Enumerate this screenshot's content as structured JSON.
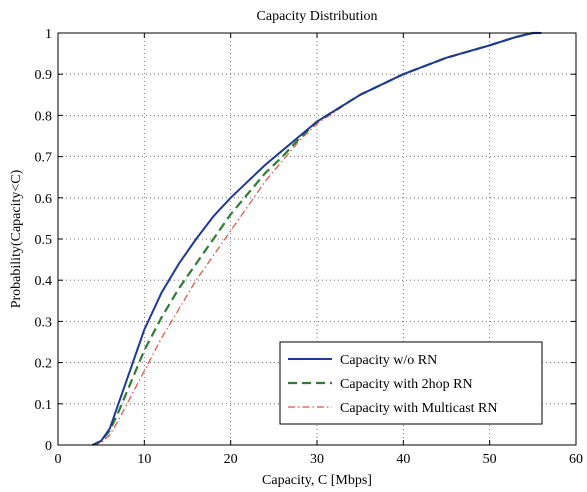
{
  "chart_data": {
    "type": "line",
    "title": "Capacity Distribution",
    "xlabel": "Capacity, C [Mbps]",
    "ylabel": "Probability(Capacity<C)",
    "xlim": [
      0,
      60
    ],
    "ylim": [
      0,
      1
    ],
    "xticks": [
      0,
      10,
      20,
      30,
      40,
      50,
      60
    ],
    "yticks": [
      0,
      0.1,
      0.2,
      0.3,
      0.4,
      0.5,
      0.6,
      0.7,
      0.8,
      0.9,
      1
    ],
    "grid": true,
    "legend_position": "bottom-right",
    "series": [
      {
        "name": "Capacity w/o RN",
        "color": "#1f3a93",
        "style": "solid",
        "x": [
          4,
          5,
          6,
          7,
          8,
          9,
          10,
          12,
          14,
          16,
          18,
          20,
          22,
          24,
          26,
          28,
          30,
          35,
          40,
          45,
          50,
          53,
          55,
          56
        ],
        "y": [
          0,
          0.01,
          0.04,
          0.1,
          0.16,
          0.22,
          0.28,
          0.37,
          0.44,
          0.5,
          0.555,
          0.6,
          0.64,
          0.68,
          0.715,
          0.75,
          0.785,
          0.85,
          0.9,
          0.94,
          0.97,
          0.99,
          1.0,
          1.0
        ]
      },
      {
        "name": "Capacity with 2hop RN",
        "color": "#2e7d32",
        "style": "dashed",
        "x": [
          4,
          5,
          6,
          7,
          8,
          9,
          10,
          12,
          14,
          16,
          18,
          20,
          22,
          24,
          26,
          28,
          30,
          35,
          40,
          45,
          50,
          53,
          55,
          56
        ],
        "y": [
          0,
          0.01,
          0.035,
          0.08,
          0.13,
          0.18,
          0.23,
          0.31,
          0.38,
          0.44,
          0.5,
          0.56,
          0.61,
          0.66,
          0.7,
          0.745,
          0.785,
          0.85,
          0.9,
          0.94,
          0.97,
          0.99,
          1.0,
          1.0
        ]
      },
      {
        "name": "Capacity with Multicast RN",
        "color": "#e0503f",
        "style": "dash-dot",
        "x": [
          4,
          5,
          6,
          7,
          8,
          9,
          10,
          12,
          14,
          16,
          18,
          20,
          22,
          24,
          26,
          28,
          30,
          35,
          40,
          45,
          50,
          53,
          55,
          56
        ],
        "y": [
          0,
          0.005,
          0.025,
          0.06,
          0.1,
          0.14,
          0.18,
          0.26,
          0.33,
          0.4,
          0.46,
          0.52,
          0.58,
          0.64,
          0.69,
          0.74,
          0.78,
          0.85,
          0.9,
          0.94,
          0.97,
          0.99,
          1.0,
          1.0
        ]
      }
    ]
  }
}
